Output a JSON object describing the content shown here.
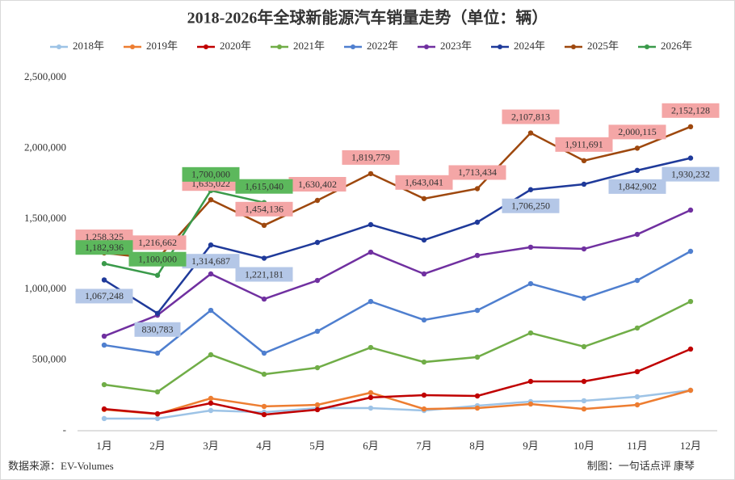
{
  "chart_data": {
    "type": "line",
    "title": "2018-2026年全球新能源汽车销量走势（单位：辆）",
    "categories": [
      "1月",
      "2月",
      "3月",
      "4月",
      "5月",
      "6月",
      "7月",
      "8月",
      "9月",
      "10月",
      "11月",
      "12月"
    ],
    "ylim": [
      0,
      2500000
    ],
    "yticks": [
      {
        "value": 0,
        "label": "-"
      },
      {
        "value": 500000,
        "label": "500,000"
      },
      {
        "value": 1000000,
        "label": "1,000,000"
      },
      {
        "value": 1500000,
        "label": "1,500,000"
      },
      {
        "value": 2000000,
        "label": "2,000,000"
      },
      {
        "value": 2500000,
        "label": "2,500,000"
      }
    ],
    "grid": false,
    "legend": "top",
    "source": "数据来源：EV-Volumes",
    "credit": "制图：一句话点评 康琴",
    "series": [
      {
        "name": "2018年",
        "color": "#9dc3e6",
        "values": [
          86000,
          86000,
          143000,
          131000,
          160000,
          160000,
          143000,
          177000,
          206000,
          212000,
          240000,
          286000
        ]
      },
      {
        "name": "2019年",
        "color": "#ed7d31",
        "values": [
          150000,
          118000,
          229000,
          172000,
          183000,
          269000,
          154000,
          160000,
          189000,
          154000,
          183000,
          286000
        ]
      },
      {
        "name": "2020年",
        "color": "#c00000",
        "values": [
          154000,
          120000,
          195000,
          114000,
          149000,
          235000,
          252000,
          246000,
          349000,
          349000,
          418000,
          578000
        ]
      },
      {
        "name": "2021年",
        "color": "#70ad47",
        "values": [
          326000,
          275000,
          538000,
          400000,
          446000,
          589000,
          486000,
          521000,
          692000,
          595000,
          727000,
          915000
        ]
      },
      {
        "name": "2022年",
        "color": "#4f7fcf",
        "values": [
          606000,
          549000,
          852000,
          549000,
          704000,
          915000,
          784000,
          852000,
          1041000,
          938000,
          1064000,
          1270000
        ]
      },
      {
        "name": "2023年",
        "color": "#7030a0",
        "values": [
          669000,
          818000,
          1110000,
          932000,
          1064000,
          1264000,
          1110000,
          1241000,
          1299000,
          1287000,
          1390000,
          1562000
        ]
      },
      {
        "name": "2024年",
        "color": "#1f3a9a",
        "label_bg": "#b4c7e7",
        "values": [
          1067248,
          830783,
          1314687,
          1221181,
          1333000,
          1459000,
          1350000,
          1476000,
          1706250,
          1745000,
          1842902,
          1930232
        ],
        "value_labels": [
          "1,067,248",
          "830,783",
          "1,314,687",
          "1,221,181",
          null,
          null,
          null,
          null,
          "1,706,250",
          null,
          "1,842,902",
          "1,930,232"
        ]
      },
      {
        "name": "2025年",
        "color": "#9e480e",
        "label_bg": "#f4a6a6",
        "values": [
          1258325,
          1216662,
          1635022,
          1454136,
          1630402,
          1819779,
          1643041,
          1713434,
          2107813,
          1911691,
          2000115,
          2152128
        ],
        "value_labels": [
          "1,258,325",
          "1,216,662",
          "1,635,022",
          "1,454,136",
          "1,630,402",
          "1,819,779",
          "1,643,041",
          "1,713,434",
          "2,107,813",
          "1,911,691",
          "2,000,115",
          "2,152,128"
        ]
      },
      {
        "name": "2026年",
        "color": "#3a9a4a",
        "label_bg": "#5cb85c",
        "values": [
          1182936,
          1100000,
          1700000,
          1615040,
          null,
          null,
          null,
          null,
          null,
          null,
          null,
          null
        ],
        "value_labels": [
          "1,182,936",
          "1,100,000",
          "1,700,000",
          "1,615,040",
          null,
          null,
          null,
          null,
          null,
          null,
          null,
          null
        ]
      }
    ]
  }
}
